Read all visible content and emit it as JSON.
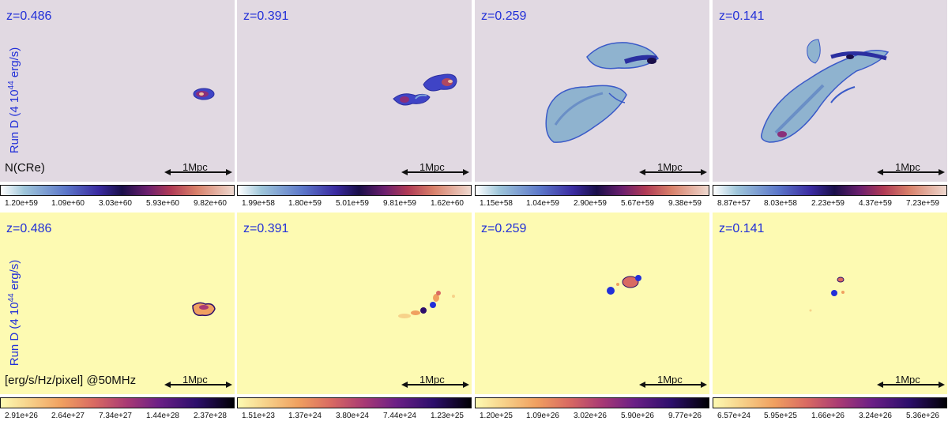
{
  "arrow_color": "#111111",
  "rows": [
    {
      "quantity_label": "N(CRe)",
      "colormap": "linear-gradient(to right, #ffffff, #9fc6da 10%, #5b76c9 28%, #3a2aa0 42%, #1a0f4a 52%, #6b1f6e 63%, #b03a55 73%, #d8806a 84%, #eed8cf 100%)",
      "panels": [
        {
          "z": "z=0.486",
          "run_label": "Run D (4 10",
          "run_sup": "44",
          "run_unit": " erg/s)",
          "scale": "1Mpc",
          "ticks": [
            "1.20e+59",
            "1.09e+60",
            "3.03e+60",
            "5.93e+60",
            "9.82e+60"
          ]
        },
        {
          "z": "z=0.391",
          "scale": "1Mpc",
          "ticks": [
            "1.99e+58",
            "1.80e+59",
            "5.01e+59",
            "9.81e+59",
            "1.62e+60"
          ]
        },
        {
          "z": "z=0.259",
          "scale": "1Mpc",
          "ticks": [
            "1.15e+58",
            "1.04e+59",
            "2.90e+59",
            "5.67e+59",
            "9.38e+59"
          ]
        },
        {
          "z": "z=0.141",
          "scale": "1Mpc",
          "ticks": [
            "8.87e+57",
            "8.03e+58",
            "2.23e+59",
            "4.37e+59",
            "7.23e+59"
          ]
        }
      ]
    },
    {
      "quantity_label": "[erg/s/Hz/pixel] @50MHz",
      "colormap": "linear-gradient(to right, #fdfab2, #f7d28a 12%, #f0a060 26%, #d96a62 40%, #a93a74 54%, #6b1f86 68%, #2c0e6b 84%, #000004 100%)",
      "panels": [
        {
          "z": "z=0.486",
          "run_label": "Run D (4 10",
          "run_sup": "44",
          "run_unit": " erg/s)",
          "scale": "1Mpc",
          "ticks": [
            "2.91e+26",
            "2.64e+27",
            "7.34e+27",
            "1.44e+28",
            "2.37e+28"
          ]
        },
        {
          "z": "z=0.391",
          "scale": "1Mpc",
          "ticks": [
            "1.51e+23",
            "1.37e+24",
            "3.80e+24",
            "7.44e+24",
            "1.23e+25"
          ]
        },
        {
          "z": "z=0.259",
          "scale": "1Mpc",
          "ticks": [
            "1.20e+25",
            "1.09e+26",
            "3.02e+26",
            "5.90e+26",
            "9.77e+26"
          ]
        },
        {
          "z": "z=0.141",
          "scale": "1Mpc",
          "ticks": [
            "6.57e+24",
            "5.95e+25",
            "1.66e+26",
            "3.24e+26",
            "5.36e+26"
          ]
        }
      ]
    }
  ]
}
